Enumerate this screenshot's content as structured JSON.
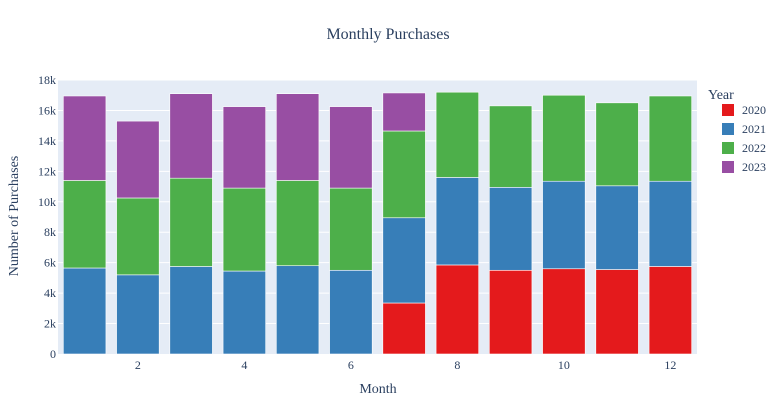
{
  "chart_data": {
    "type": "bar",
    "stacked": true,
    "title": "Monthly Purchases",
    "xlabel": "Month",
    "ylabel": "Number of Purchases",
    "x": [
      1,
      2,
      3,
      4,
      5,
      6,
      7,
      8,
      9,
      10,
      11,
      12
    ],
    "xticks": [
      2,
      4,
      6,
      8,
      10,
      12
    ],
    "ylim": [
      0,
      18000
    ],
    "yticks": [
      0,
      2000,
      4000,
      6000,
      8000,
      10000,
      12000,
      14000,
      16000,
      18000
    ],
    "ytick_labels": [
      "0",
      "2k",
      "4k",
      "6k",
      "8k",
      "10k",
      "12k",
      "14k",
      "16k",
      "18k"
    ],
    "legend": {
      "title": "Year",
      "placement": "right"
    },
    "grid": true,
    "plot_background": "#e5ecf6",
    "series": [
      {
        "name": "2020",
        "color": "#e41a1c",
        "values": [
          0,
          0,
          0,
          0,
          0,
          0,
          3350,
          5850,
          5500,
          5600,
          5550,
          5750
        ]
      },
      {
        "name": "2021",
        "color": "#377eb8",
        "values": [
          5650,
          5200,
          5750,
          5450,
          5800,
          5500,
          5600,
          5750,
          5450,
          5750,
          5500,
          5600
        ]
      },
      {
        "name": "2022",
        "color": "#4daf4a",
        "values": [
          5750,
          5050,
          5800,
          5450,
          5600,
          5400,
          5700,
          5600,
          5350,
          5650,
          5450,
          5600
        ]
      },
      {
        "name": "2023",
        "color": "#984ea3",
        "values": [
          5550,
          5050,
          5550,
          5350,
          5700,
          5350,
          2500,
          0,
          0,
          0,
          0,
          0
        ]
      }
    ]
  }
}
